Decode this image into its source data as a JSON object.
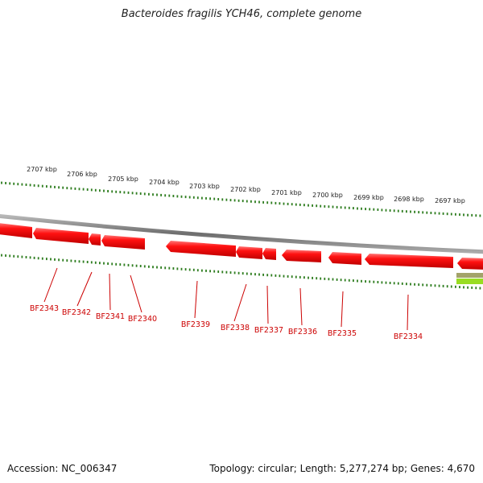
{
  "header": {
    "title": "Bacteroides fragilis YCH46, complete genome"
  },
  "footer": {
    "accession": "Accession: NC_006347",
    "summary": "Topology: circular; Length: 5,277,274 bp; Genes: 4,670"
  },
  "ruler": {
    "labels": [
      "2707 kbp",
      "2706 kbp",
      "2705 kbp",
      "2704 kbp",
      "2703 kbp",
      "2702 kbp",
      "2701 kbp",
      "2700 kbp",
      "2699 kbp",
      "2698 kbp",
      "2697 kbp"
    ]
  },
  "genes": {
    "labels": [
      "BF2343",
      "BF2342",
      "BF2341",
      "BF2340",
      "BF2339",
      "BF2338",
      "BF2337",
      "BF2336",
      "BF2335",
      "BF2334"
    ]
  },
  "colors": {
    "gene_fill": "#ff0000",
    "gene_highlight": "#ff6666",
    "gene_shadow": "#b80000",
    "label_red": "#cc0000",
    "tick_green": "#2e7d1f",
    "backbone": "#808080",
    "feature_green": "#99cc33"
  }
}
